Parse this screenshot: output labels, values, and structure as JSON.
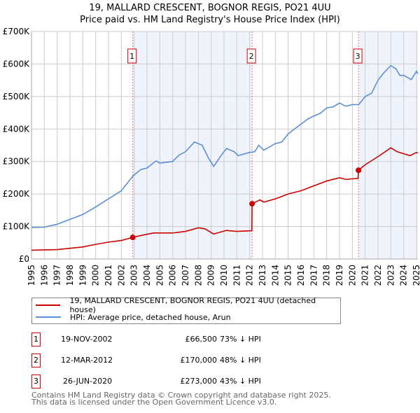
{
  "chart_data": {
    "type": "line",
    "title": "19, MALLARD CRESCENT, BOGNOR REGIS, PO21 4UU",
    "subtitle": "Price paid vs. HM Land Registry's House Price Index (HPI)",
    "xlim": [
      1995,
      2025.1
    ],
    "ylim": [
      0,
      700000
    ],
    "x_ticks": [
      "1995",
      "1996",
      "1997",
      "1998",
      "1999",
      "2000",
      "2001",
      "2002",
      "2003",
      "2004",
      "2005",
      "2006",
      "2007",
      "2008",
      "2009",
      "2010",
      "2011",
      "2012",
      "2013",
      "2014",
      "2015",
      "2016",
      "2017",
      "2018",
      "2019",
      "2020",
      "2021",
      "2022",
      "2023",
      "2024",
      "2025"
    ],
    "y_ticks": [
      {
        "v": 0,
        "l": "£0"
      },
      {
        "v": 100000,
        "l": "£100K"
      },
      {
        "v": 200000,
        "l": "£200K"
      },
      {
        "v": 300000,
        "l": "£300K"
      },
      {
        "v": 400000,
        "l": "£400K"
      },
      {
        "v": 500000,
        "l": "£500K"
      },
      {
        "v": 600000,
        "l": "£600K"
      },
      {
        "v": 700000,
        "l": "£700K"
      }
    ],
    "grid": true,
    "series": [
      {
        "name": "19, MALLARD CRESCENT, BOGNOR REGIS, PO21 4UU (detached house)",
        "color": "#cc0000",
        "points": [
          [
            1995,
            27000
          ],
          [
            1997,
            29000
          ],
          [
            1998,
            33000
          ],
          [
            1999,
            37000
          ],
          [
            2000,
            45000
          ],
          [
            2001,
            52000
          ],
          [
            2002,
            57000
          ],
          [
            2002.89,
            66500
          ],
          [
            2003.5,
            72000
          ],
          [
            2004.5,
            80000
          ],
          [
            2006,
            80000
          ],
          [
            2007,
            85000
          ],
          [
            2008,
            96000
          ],
          [
            2008.5,
            93000
          ],
          [
            2009.2,
            77000
          ],
          [
            2010.2,
            88000
          ],
          [
            2011,
            85000
          ],
          [
            2012.17,
            87000
          ],
          [
            2012.19,
            170000
          ],
          [
            2012.8,
            182000
          ],
          [
            2013.1,
            175000
          ],
          [
            2014,
            185000
          ],
          [
            2015,
            200000
          ],
          [
            2016,
            210000
          ],
          [
            2017,
            225000
          ],
          [
            2018,
            240000
          ],
          [
            2019,
            250000
          ],
          [
            2019.5,
            245000
          ],
          [
            2020.45,
            248000
          ],
          [
            2020.48,
            273000
          ],
          [
            2021,
            290000
          ],
          [
            2022,
            315000
          ],
          [
            2023,
            342000
          ],
          [
            2023.5,
            330000
          ],
          [
            2024.5,
            318000
          ],
          [
            2025,
            328000
          ],
          [
            2025.1,
            326000
          ]
        ]
      },
      {
        "name": "HPI: Average price, detached house, Arun",
        "color": "#5b8fd6",
        "points": [
          [
            1995,
            97000
          ],
          [
            1996,
            98000
          ],
          [
            1997,
            107000
          ],
          [
            1998,
            122000
          ],
          [
            1999,
            137000
          ],
          [
            2000,
            160000
          ],
          [
            2001,
            185000
          ],
          [
            2002,
            210000
          ],
          [
            2002.9,
            255000
          ],
          [
            2003.5,
            275000
          ],
          [
            2004,
            280000
          ],
          [
            2004.7,
            302000
          ],
          [
            2005,
            295000
          ],
          [
            2006,
            300000
          ],
          [
            2006.5,
            320000
          ],
          [
            2007,
            330000
          ],
          [
            2007.7,
            360000
          ],
          [
            2008.3,
            350000
          ],
          [
            2008.8,
            310000
          ],
          [
            2009.2,
            285000
          ],
          [
            2009.8,
            320000
          ],
          [
            2010.2,
            340000
          ],
          [
            2010.8,
            330000
          ],
          [
            2011.1,
            318000
          ],
          [
            2012,
            328000
          ],
          [
            2012.4,
            330000
          ],
          [
            2012.7,
            350000
          ],
          [
            2013.1,
            335000
          ],
          [
            2014,
            355000
          ],
          [
            2014.5,
            360000
          ],
          [
            2015,
            385000
          ],
          [
            2015.5,
            400000
          ],
          [
            2016,
            415000
          ],
          [
            2016.5,
            430000
          ],
          [
            2017,
            440000
          ],
          [
            2017.5,
            448000
          ],
          [
            2018,
            465000
          ],
          [
            2018.5,
            468000
          ],
          [
            2019,
            480000
          ],
          [
            2019.5,
            470000
          ],
          [
            2020,
            475000
          ],
          [
            2020.5,
            475000
          ],
          [
            2021,
            500000
          ],
          [
            2021.5,
            510000
          ],
          [
            2022,
            550000
          ],
          [
            2022.5,
            575000
          ],
          [
            2023,
            595000
          ],
          [
            2023.4,
            585000
          ],
          [
            2023.7,
            565000
          ],
          [
            2024,
            565000
          ],
          [
            2024.6,
            552000
          ],
          [
            2025,
            578000
          ],
          [
            2025.1,
            570000
          ]
        ]
      }
    ],
    "transactions": [
      {
        "n": "1",
        "x": 2002.89,
        "y": 66500,
        "date": "19-NOV-2002",
        "price": "£66,500",
        "delta": "73% ↓ HPI"
      },
      {
        "n": "2",
        "x": 2012.19,
        "y": 170000,
        "date": "12-MAR-2012",
        "price": "£170,000",
        "delta": "48% ↓ HPI"
      },
      {
        "n": "3",
        "x": 2020.48,
        "y": 273000,
        "date": "26-JUN-2020",
        "price": "£273,000",
        "delta": "43% ↓ HPI"
      }
    ],
    "legend_placement": "below"
  },
  "footer": [
    "Contains HM Land Registry data © Crown copyright and database right 2025.",
    "This data is licensed under the Open Government Licence v3.0."
  ]
}
